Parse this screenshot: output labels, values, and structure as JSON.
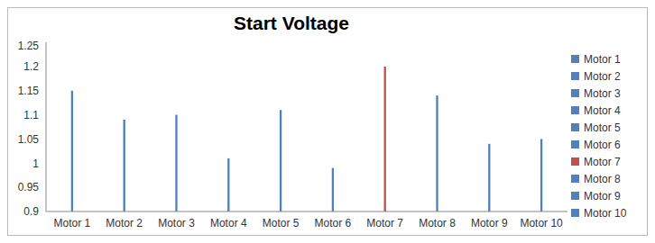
{
  "chart_data": {
    "type": "bar",
    "title": "Start Voltage",
    "categories": [
      "Motor 1",
      "Motor 2",
      "Motor 3",
      "Motor 4",
      "Motor 5",
      "Motor 6",
      "Motor 7",
      "Motor 8",
      "Motor 9",
      "Motor 10"
    ],
    "values": [
      1.15,
      1.09,
      1.1,
      1.01,
      1.11,
      0.99,
      1.2,
      1.14,
      1.04,
      1.05
    ],
    "colors": [
      "#4f81bd",
      "#4f81bd",
      "#4f81bd",
      "#4f81bd",
      "#4f81bd",
      "#4f81bd",
      "#c0504d",
      "#4f81bd",
      "#4f81bd",
      "#4f81bd"
    ],
    "ylim": [
      0.9,
      1.25
    ],
    "yticks": [
      0.9,
      0.95,
      1,
      1.05,
      1.1,
      1.15,
      1.2,
      1.25
    ],
    "grid": false,
    "legend": "right"
  }
}
